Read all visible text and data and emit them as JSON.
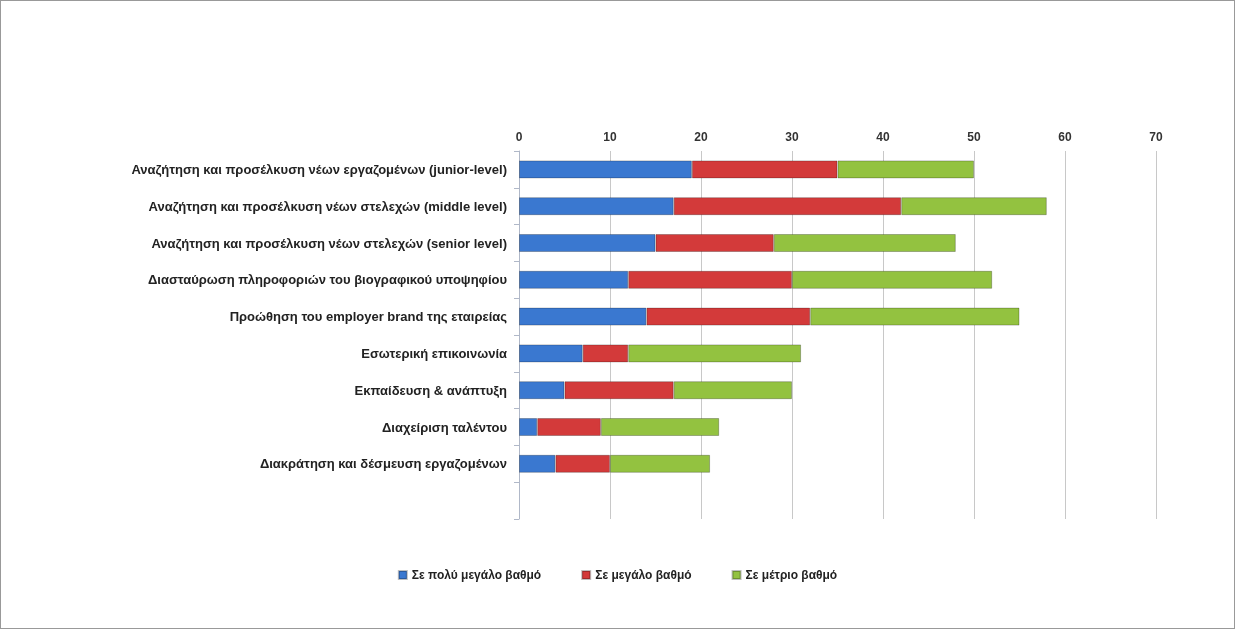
{
  "chart_data": {
    "type": "bar",
    "orientation": "horizontal",
    "stacked": true,
    "categories": [
      "Αναζήτηση και προσέλκυση νέων εργαζομένων (junior-level)",
      "Αναζήτηση και προσέλκυση νέων στελεχών (middle level)",
      "Αναζήτηση και προσέλκυση νέων στελεχών (senior level)",
      "Διασταύρωση πληροφοριών του βιογραφικού υποψηφίου",
      "Προώθηση του employer brand της εταιρείας",
      "Εσωτερική επικοινωνία",
      "Εκπαίδευση & ανάπτυξη",
      "Διαχείριση ταλέντου",
      "Διακράτηση και δέσμευση εργαζομένων",
      null
    ],
    "series": [
      {
        "name": "Σε πολύ μεγάλο βαθμό",
        "color": "#3a78d0",
        "values": [
          19,
          17,
          15,
          12,
          14,
          7,
          5,
          2,
          4,
          null
        ]
      },
      {
        "name": "Σε μεγάλο βαθμό",
        "color": "#d33a3a",
        "values": [
          16,
          25,
          13,
          18,
          18,
          5,
          12,
          7,
          6,
          null
        ]
      },
      {
        "name": "Σε μέτριο βαθμό",
        "color": "#93c240",
        "values": [
          15,
          16,
          20,
          22,
          23,
          19,
          13,
          13,
          11,
          null
        ]
      }
    ],
    "xlim": [
      0,
      70
    ],
    "xticks": [
      0,
      10,
      20,
      30,
      40,
      50,
      60,
      70
    ],
    "grid": "x",
    "legend": "bottom"
  }
}
